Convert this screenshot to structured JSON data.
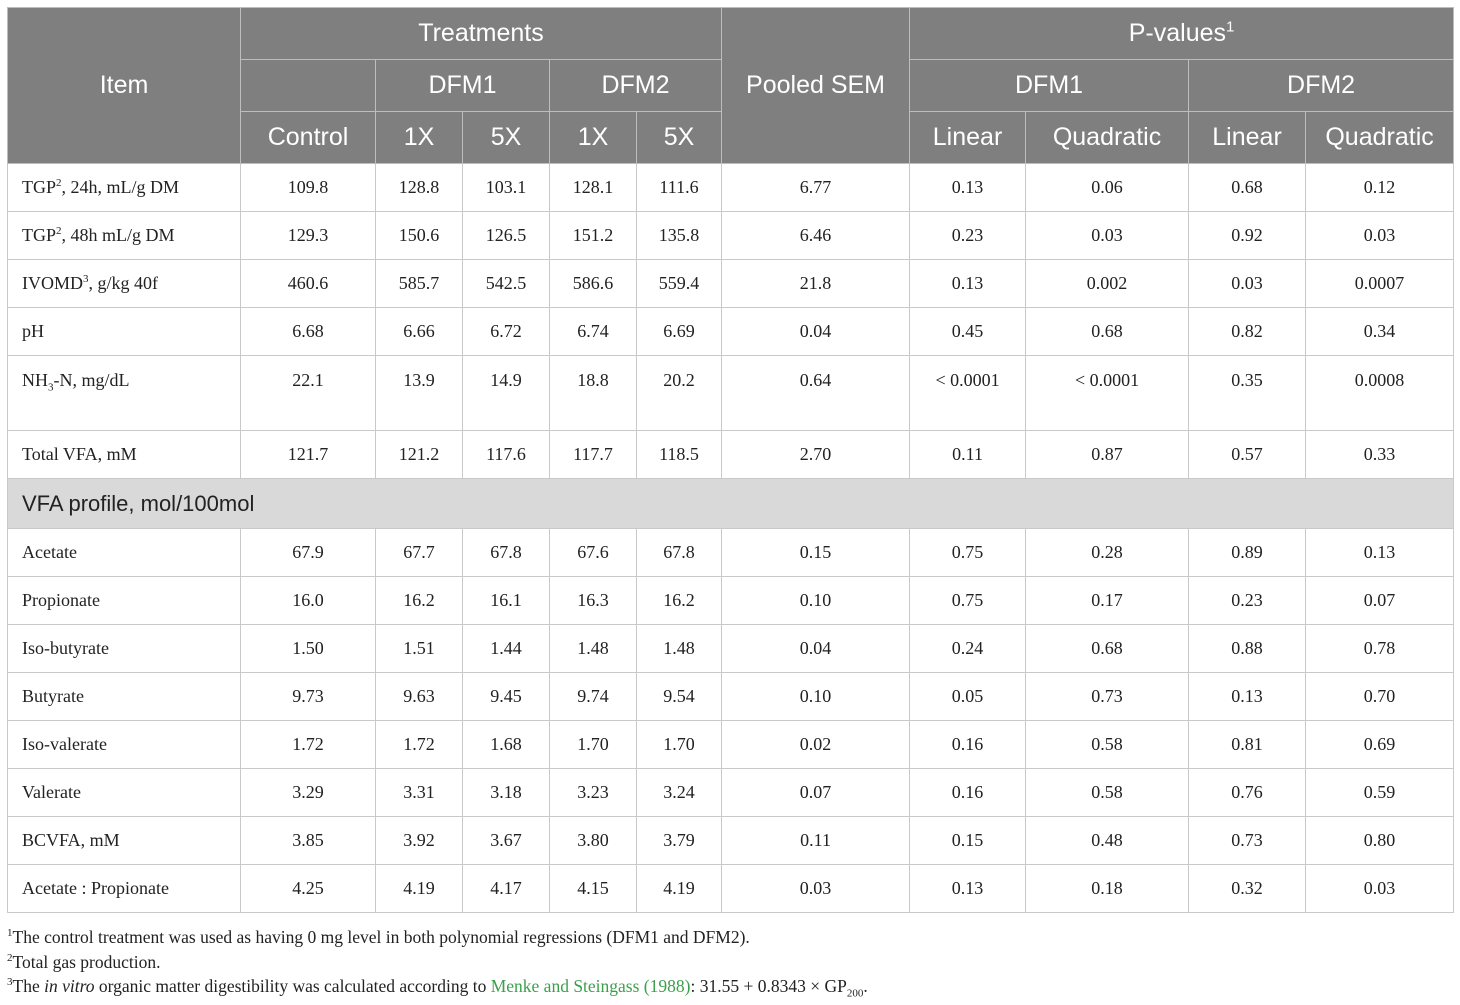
{
  "header": {
    "item": "Item",
    "treatments": "Treatments",
    "pooled_sem": "Pooled SEM",
    "pvalues": "P-values",
    "pvalues_sup": "1",
    "dfm1": "DFM1",
    "dfm2": "DFM2",
    "control": "Control",
    "x1": "1X",
    "x5": "5X",
    "linear": "Linear",
    "quadratic": "Quadratic"
  },
  "rows_top": [
    {
      "pre": "TGP",
      "sup": "2",
      "post": ", 24h, mL/g DM",
      "vals": [
        "109.8",
        "128.8",
        "103.1",
        "128.1",
        "111.6",
        "6.77",
        "0.13",
        "0.06",
        "0.68",
        "0.12"
      ]
    },
    {
      "pre": "TGP",
      "sup": "2",
      "post": ", 48h mL/g DM",
      "vals": [
        "129.3",
        "150.6",
        "126.5",
        "151.2",
        "135.8",
        "6.46",
        "0.23",
        "0.03",
        "0.92",
        "0.03"
      ]
    },
    {
      "pre": "IVOMD",
      "sup": "3",
      "post": ", g/kg 40f",
      "vals": [
        "460.6",
        "585.7",
        "542.5",
        "586.6",
        "559.4",
        "21.8",
        "0.13",
        "0.002",
        "0.03",
        "0.0007"
      ]
    },
    {
      "pre": "pH",
      "sup": "",
      "post": "",
      "vals": [
        "6.68",
        "6.66",
        "6.72",
        "6.74",
        "6.69",
        "0.04",
        "0.45",
        "0.68",
        "0.82",
        "0.34"
      ]
    }
  ],
  "nh3_row": {
    "pre": "NH",
    "sub": "3",
    "post": "-N, mg/dL",
    "vals": [
      "22.1",
      "13.9",
      "14.9",
      "18.8",
      "20.2",
      "0.64",
      "< 0.0001",
      "< 0.0001",
      "0.35",
      "0.0008"
    ]
  },
  "total_vfa": {
    "label": "Total VFA, mM",
    "vals": [
      "121.7",
      "121.2",
      "117.6",
      "117.7",
      "118.5",
      "2.70",
      "0.11",
      "0.87",
      "0.57",
      "0.33"
    ]
  },
  "section_label": "VFA profile, mol/100mol",
  "rows_vfa": [
    {
      "label": "Acetate",
      "vals": [
        "67.9",
        "67.7",
        "67.8",
        "67.6",
        "67.8",
        "0.15",
        "0.75",
        "0.28",
        "0.89",
        "0.13"
      ]
    },
    {
      "label": "Propionate",
      "vals": [
        "16.0",
        "16.2",
        "16.1",
        "16.3",
        "16.2",
        "0.10",
        "0.75",
        "0.17",
        "0.23",
        "0.07"
      ]
    },
    {
      "label": "Iso-butyrate",
      "vals": [
        "1.50",
        "1.51",
        "1.44",
        "1.48",
        "1.48",
        "0.04",
        "0.24",
        "0.68",
        "0.88",
        "0.78"
      ]
    },
    {
      "label": "Butyrate",
      "vals": [
        "9.73",
        "9.63",
        "9.45",
        "9.74",
        "9.54",
        "0.10",
        "0.05",
        "0.73",
        "0.13",
        "0.70"
      ]
    },
    {
      "label": "Iso-valerate",
      "vals": [
        "1.72",
        "1.72",
        "1.68",
        "1.70",
        "1.70",
        "0.02",
        "0.16",
        "0.58",
        "0.81",
        "0.69"
      ]
    },
    {
      "label": "Valerate",
      "vals": [
        "3.29",
        "3.31",
        "3.18",
        "3.23",
        "3.24",
        "0.07",
        "0.16",
        "0.58",
        "0.76",
        "0.59"
      ]
    },
    {
      "label": "BCVFA, mM",
      "vals": [
        "3.85",
        "3.92",
        "3.67",
        "3.80",
        "3.79",
        "0.11",
        "0.15",
        "0.48",
        "0.73",
        "0.80"
      ]
    },
    {
      "label": "Acetate : Propionate",
      "vals": [
        "4.25",
        "4.19",
        "4.17",
        "4.15",
        "4.19",
        "0.03",
        "0.13",
        "0.18",
        "0.32",
        "0.03"
      ]
    }
  ],
  "footnotes": {
    "f1_sup": "1",
    "f1": "The control treatment was used as having 0 mg level in both polynomial regressions (DFM1 and DFM2).",
    "f2_sup": "2",
    "f2": "Total gas production.",
    "f3_sup": "3",
    "f3_a": "The ",
    "f3_italic": "in vitro",
    "f3_b": " organic matter digestibility was calculated according to ",
    "f3_link": "Menke and Steingass (1988)",
    "f3_c": ": 31.55 + 0.8343 × GP",
    "f3_sub": "200",
    "f3_d": "."
  },
  "colors": {
    "header_bg": "#7f7f7f",
    "section_bg": "#d9d9d9",
    "link": "#3aa04a"
  }
}
